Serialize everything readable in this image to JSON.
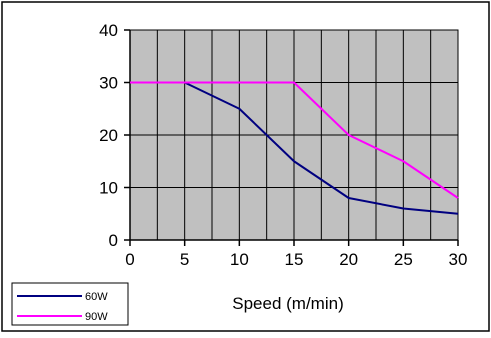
{
  "chart_data": {
    "type": "line",
    "title": "",
    "xlabel": "Speed (m/min)",
    "ylabel": "",
    "xlim": [
      0,
      30
    ],
    "ylim": [
      0,
      40
    ],
    "x_ticks": [
      0,
      5,
      10,
      15,
      20,
      25,
      30
    ],
    "y_ticks": [
      0,
      10,
      20,
      30,
      40
    ],
    "grid": true,
    "legend_position": "bottom-left",
    "series": [
      {
        "name": "60W",
        "color": "#000080",
        "points": [
          [
            0,
            30
          ],
          [
            5,
            30
          ],
          [
            10,
            25
          ],
          [
            15,
            15
          ],
          [
            20,
            8
          ],
          [
            25,
            6
          ],
          [
            30,
            5
          ]
        ]
      },
      {
        "name": "90W",
        "color": "#ff00ff",
        "points": [
          [
            0,
            30
          ],
          [
            15,
            30
          ],
          [
            20,
            20
          ],
          [
            25,
            15
          ],
          [
            30,
            8
          ]
        ]
      }
    ],
    "colors": {
      "plot_background": "#c0c0c0",
      "gridline": "#000000"
    }
  }
}
